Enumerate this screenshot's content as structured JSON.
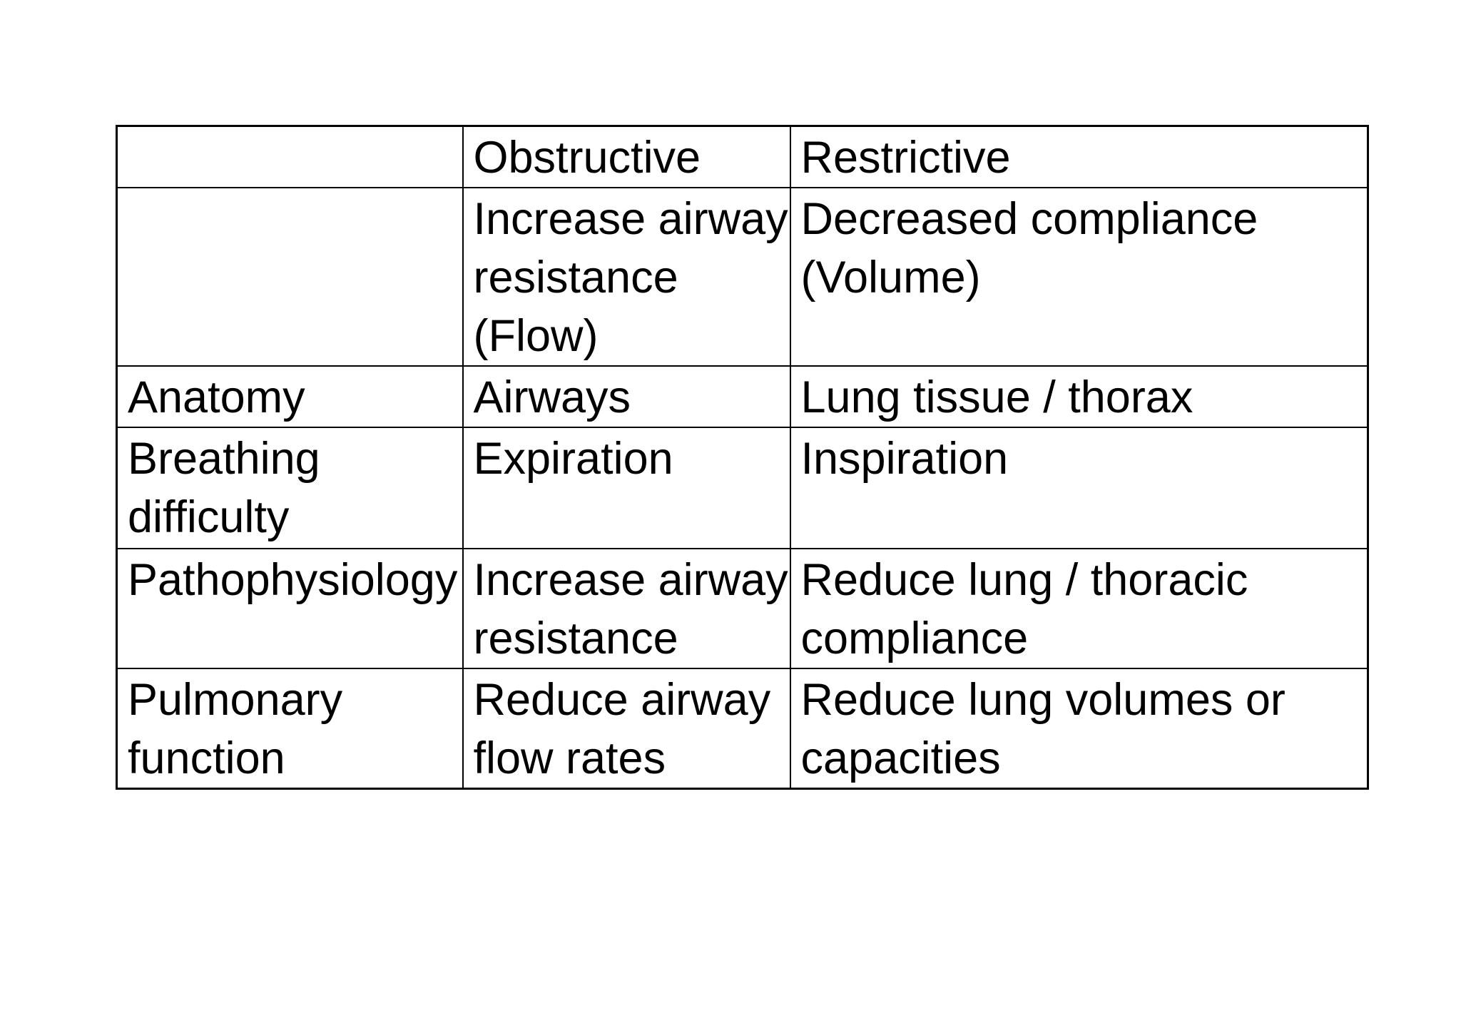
{
  "page": {
    "background_color": "#ffffff"
  },
  "table": {
    "border_color": "#000000",
    "text_color": "#000000",
    "header": [
      "",
      "Obstructive",
      "Restrictive"
    ],
    "rows": [
      [
        "",
        "Increase airway\nresistance\n(Flow)",
        "Decreased compliance\n(Volume)"
      ],
      [
        "Anatomy",
        "Airways",
        "Lung tissue / thorax"
      ],
      [
        "Breathing\ndifficulty",
        "Expiration",
        "Inspiration"
      ],
      [
        "Pathophysiology",
        "Increase airway\nresistance",
        "Reduce lung / thoracic\ncompliance"
      ],
      [
        "Pulmonary\nfunction",
        "Reduce airway\nflow rates",
        "Reduce lung volumes or\ncapacities"
      ]
    ]
  }
}
